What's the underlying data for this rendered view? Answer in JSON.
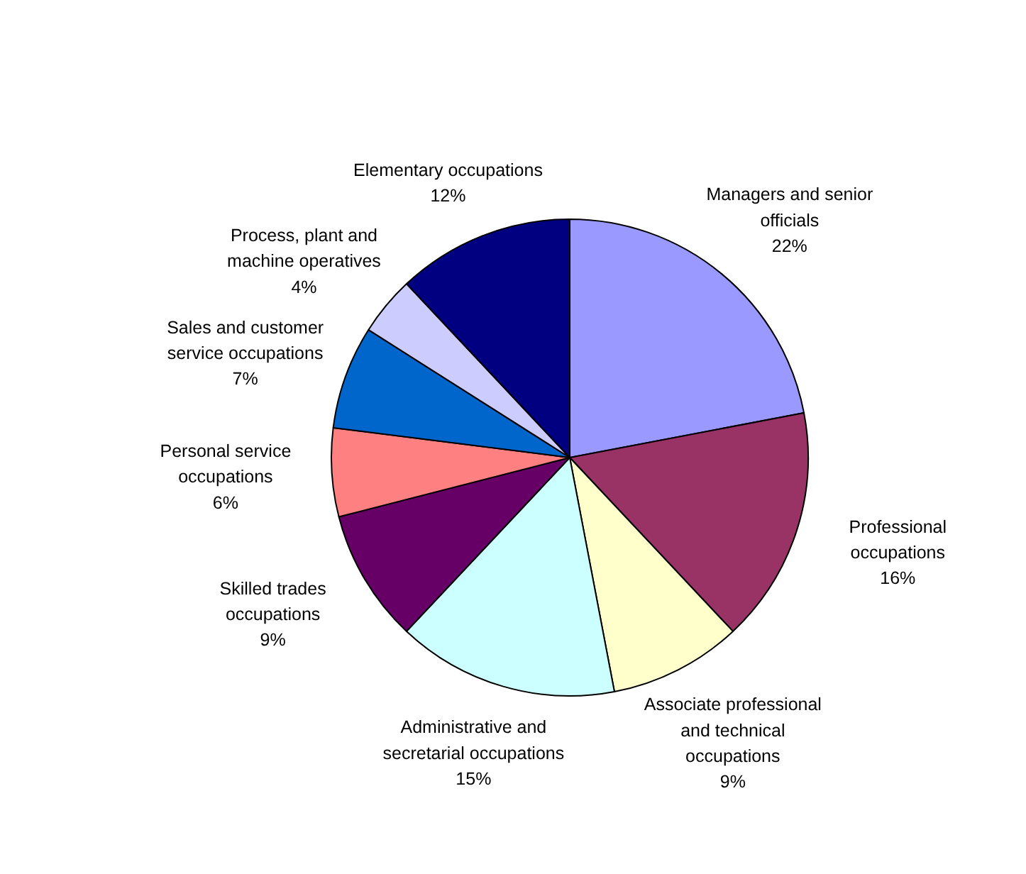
{
  "chart_data": {
    "type": "pie",
    "categories": [
      "Managers and senior officials",
      "Professional occupations",
      "Associate professional and technical occupations",
      "Administrative and secretarial occupations",
      "Skilled trades occupations",
      "Personal service occupations",
      "Sales and customer service occupations",
      "Process, plant and machine operatives",
      "Elementary occupations"
    ],
    "values": [
      22,
      16,
      9,
      15,
      9,
      6,
      7,
      4,
      12
    ],
    "value_labels": [
      "22%",
      "16%",
      "9%",
      "15%",
      "9%",
      "6%",
      "7%",
      "4%",
      "12%"
    ],
    "colors": [
      "#9999ff",
      "#993366",
      "#ffffcc",
      "#ccffff",
      "#660066",
      "#ff8080",
      "#0066cc",
      "#ccccff",
      "#000080"
    ]
  }
}
